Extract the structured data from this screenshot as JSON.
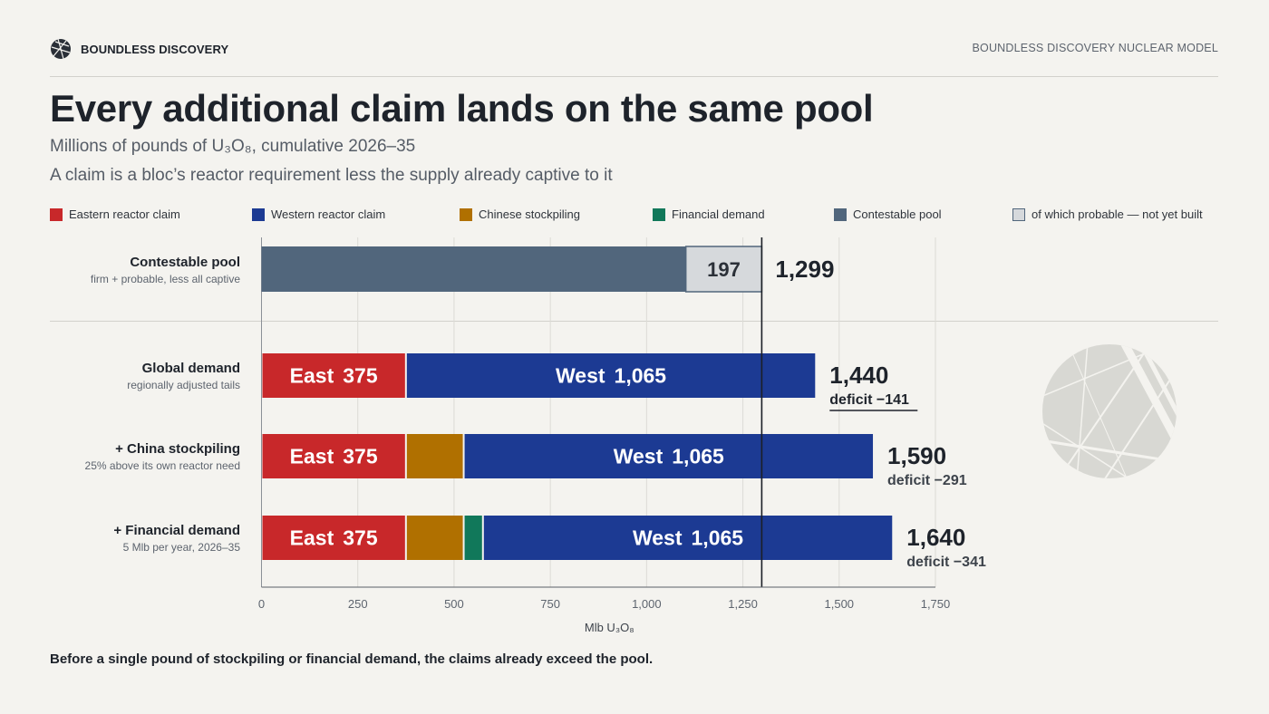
{
  "header": {
    "brand": "BOUNDLESS DISCOVERY",
    "model": "BOUNDLESS DISCOVERY NUCLEAR MODEL"
  },
  "title": "Every additional claim lands on the same pool",
  "subtitle": "Millions of pounds of U₃O₈, cumulative 2026–35",
  "note": "A claim is a bloc’s reactor requirement less the supply already captive to it",
  "legend": [
    {
      "label": "Eastern reactor claim",
      "color": "#c8282a"
    },
    {
      "label": "Western reactor claim",
      "color": "#1c3a93"
    },
    {
      "label": "Chinese stockpiling",
      "color": "#b07000"
    },
    {
      "label": "Financial demand",
      "color": "#11785a"
    },
    {
      "label": "Contestable pool",
      "color": "#51667c"
    },
    {
      "label": "of which probable — not yet built",
      "color": "#d6d9dc"
    }
  ],
  "rows": [
    {
      "title": "Contestable pool",
      "sub": "firm + probable, less all captive"
    },
    {
      "title": "Global demand",
      "sub": "regionally adjusted tails"
    },
    {
      "title": "+ China stockpiling",
      "sub": "25% above its own reactor need"
    },
    {
      "title": "+ Financial demand",
      "sub": "5 Mlb per year, 2026–35"
    }
  ],
  "chart_data": {
    "type": "bar",
    "orientation": "horizontal",
    "stacked": true,
    "x_axis_label": "Mlb U₃O₈",
    "xlim": [
      0,
      1750
    ],
    "x_ticks": [
      0,
      250,
      500,
      750,
      1000,
      1250,
      1500,
      1750
    ],
    "x_tick_labels": [
      "0",
      "250",
      "500",
      "750",
      "1,000",
      "1,250",
      "1,500",
      "1,750"
    ],
    "grid": true,
    "reference_line": {
      "value": 1299
    },
    "pool": {
      "segments": [
        {
          "series": "Contestable pool",
          "value": 1102,
          "color": "#51667c"
        },
        {
          "series": "of which probable — not yet built",
          "value": 197,
          "color": "#d6d9dc",
          "label": "197"
        }
      ],
      "total_label": "1,299"
    },
    "demand": [
      {
        "row": "Global demand",
        "segments": [
          {
            "series": "Eastern reactor claim",
            "value": 375,
            "color": "#c8282a",
            "name": "East",
            "label": "375"
          },
          {
            "series": "Western reactor claim",
            "value": 1065,
            "color": "#1c3a93",
            "name": "West",
            "label": "1,065"
          }
        ],
        "total_label": "1,440",
        "deficit_label": "deficit −141",
        "underline": true
      },
      {
        "row": "+ China stockpiling",
        "segments": [
          {
            "series": "Eastern reactor claim",
            "value": 375,
            "color": "#c8282a",
            "name": "East",
            "label": "375"
          },
          {
            "series": "Chinese stockpiling",
            "value": 150,
            "color": "#b07000"
          },
          {
            "series": "Western reactor claim",
            "value": 1065,
            "color": "#1c3a93",
            "name": "West",
            "label": "1,065"
          }
        ],
        "total_label": "1,590",
        "deficit_label": "deficit −291",
        "underline": false
      },
      {
        "row": "+ Financial demand",
        "segments": [
          {
            "series": "Eastern reactor claim",
            "value": 375,
            "color": "#c8282a",
            "name": "East",
            "label": "375"
          },
          {
            "series": "Chinese stockpiling",
            "value": 150,
            "color": "#b07000"
          },
          {
            "series": "Financial demand",
            "value": 50,
            "color": "#11785a"
          },
          {
            "series": "Western reactor claim",
            "value": 1065,
            "color": "#1c3a93",
            "name": "West",
            "label": "1,065"
          }
        ],
        "total_label": "1,640",
        "deficit_label": "deficit −341",
        "underline": false
      }
    ]
  },
  "footer": "Before a single pound of stockpiling or financial demand, the claims already exceed the pool."
}
